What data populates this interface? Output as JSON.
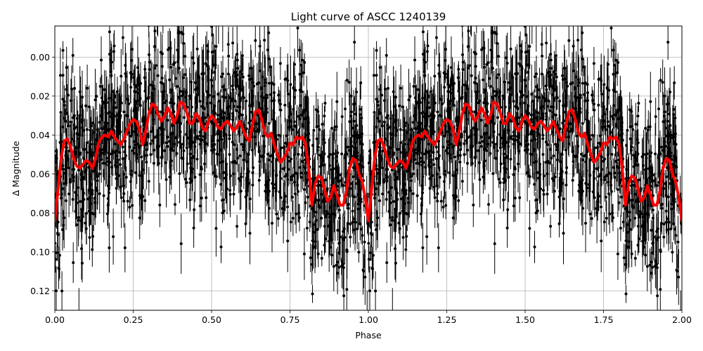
{
  "chart_data": {
    "type": "scatter",
    "title": "Light curve of ASCC 1240139",
    "xlabel": "Phase",
    "ylabel": "Δ Magnitude",
    "xlim": [
      0.0,
      2.0
    ],
    "ylim": [
      0.13,
      -0.016
    ],
    "y_inverted": true,
    "grid": true,
    "legend": null,
    "x_ticks": [
      "0.00",
      "0.25",
      "0.50",
      "0.75",
      "1.00",
      "1.25",
      "1.50",
      "1.75",
      "2.00"
    ],
    "x_tick_values": [
      0.0,
      0.25,
      0.5,
      0.75,
      1.0,
      1.25,
      1.5,
      1.75,
      2.0
    ],
    "y_ticks": [
      "0.00",
      "0.02",
      "0.04",
      "0.06",
      "0.08",
      "0.10",
      "0.12"
    ],
    "y_tick_values": [
      0.0,
      0.02,
      0.04,
      0.06,
      0.08,
      0.1,
      0.12
    ],
    "series": [
      {
        "name": "observations",
        "kind": "errorbar-scatter",
        "color": "#000000",
        "description": "Dense phase-folded photometry with error bars, scatter spanning roughly -0.015 to 0.13 mag, plotted twice (phase 0-1 and 1-2)",
        "approx_center": 0.045,
        "approx_spread": 0.035
      },
      {
        "name": "model",
        "kind": "line",
        "color": "#ff0000",
        "linewidth": 4,
        "x": [
          0.0,
          0.01,
          0.02,
          0.03,
          0.04,
          0.05,
          0.06,
          0.07,
          0.08,
          0.09,
          0.1,
          0.11,
          0.12,
          0.13,
          0.14,
          0.15,
          0.16,
          0.17,
          0.18,
          0.19,
          0.2,
          0.21,
          0.22,
          0.23,
          0.24,
          0.25,
          0.26,
          0.27,
          0.28,
          0.29,
          0.3,
          0.31,
          0.32,
          0.33,
          0.34,
          0.35,
          0.36,
          0.37,
          0.38,
          0.39,
          0.4,
          0.41,
          0.42,
          0.43,
          0.44,
          0.45,
          0.46,
          0.47,
          0.48,
          0.49,
          0.5,
          0.51,
          0.52,
          0.53,
          0.54,
          0.55,
          0.56,
          0.57,
          0.58,
          0.59,
          0.6,
          0.61,
          0.62,
          0.63,
          0.64,
          0.65,
          0.66,
          0.67,
          0.68,
          0.69,
          0.7,
          0.71,
          0.72,
          0.73,
          0.74,
          0.75,
          0.76,
          0.77,
          0.78,
          0.79,
          0.8,
          0.81,
          0.82,
          0.83,
          0.84,
          0.85,
          0.86,
          0.87,
          0.88,
          0.89,
          0.9,
          0.91,
          0.92,
          0.93,
          0.94,
          0.95,
          0.96,
          0.97,
          0.98,
          0.99,
          1.0
        ],
        "y": [
          0.084,
          0.068,
          0.052,
          0.043,
          0.042,
          0.046,
          0.052,
          0.056,
          0.057,
          0.055,
          0.053,
          0.054,
          0.057,
          0.052,
          0.044,
          0.041,
          0.04,
          0.041,
          0.038,
          0.041,
          0.043,
          0.045,
          0.042,
          0.038,
          0.034,
          0.032,
          0.033,
          0.037,
          0.045,
          0.038,
          0.029,
          0.024,
          0.025,
          0.03,
          0.033,
          0.03,
          0.026,
          0.029,
          0.034,
          0.03,
          0.023,
          0.024,
          0.028,
          0.034,
          0.034,
          0.029,
          0.031,
          0.036,
          0.038,
          0.033,
          0.03,
          0.032,
          0.036,
          0.037,
          0.034,
          0.033,
          0.035,
          0.038,
          0.036,
          0.033,
          0.037,
          0.041,
          0.043,
          0.035,
          0.028,
          0.027,
          0.032,
          0.039,
          0.041,
          0.039,
          0.045,
          0.05,
          0.054,
          0.052,
          0.049,
          0.044,
          0.045,
          0.041,
          0.042,
          0.041,
          0.045,
          0.058,
          0.076,
          0.065,
          0.061,
          0.062,
          0.068,
          0.074,
          0.072,
          0.066,
          0.071,
          0.076,
          0.076,
          0.069,
          0.057,
          0.052,
          0.053,
          0.06,
          0.064,
          0.072,
          0.084
        ]
      }
    ]
  }
}
